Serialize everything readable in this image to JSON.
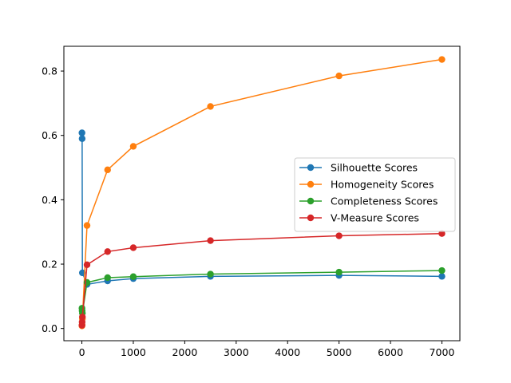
{
  "chart_data": {
    "type": "line",
    "title": "",
    "xlabel": "",
    "ylabel": "",
    "xlim": [
      -350,
      7350
    ],
    "ylim": [
      -0.038,
      0.877
    ],
    "xticks": [
      0,
      1000,
      2000,
      3000,
      4000,
      5000,
      6000,
      7000
    ],
    "xtick_labels": [
      "0",
      "1000",
      "2000",
      "3000",
      "4000",
      "5000",
      "6000",
      "7000"
    ],
    "yticks": [
      0.0,
      0.2,
      0.4,
      0.6,
      0.8
    ],
    "ytick_labels": [
      "0.0",
      "0.2",
      "0.4",
      "0.6",
      "0.8"
    ],
    "grid": false,
    "legend_position": "center-right",
    "series": [
      {
        "name": "Silhouette Scores",
        "color": "#1f77b4",
        "x": [
          2,
          5,
          10,
          100,
          500,
          1000,
          2500,
          5000,
          7000
        ],
        "y": [
          0.608,
          0.59,
          0.173,
          0.137,
          0.148,
          0.155,
          0.162,
          0.165,
          0.162
        ]
      },
      {
        "name": "Homogeneity Scores",
        "color": "#ff7f0e",
        "x": [
          2,
          5,
          10,
          100,
          500,
          1000,
          2500,
          5000,
          7000
        ],
        "y": [
          0.008,
          0.012,
          0.03,
          0.32,
          0.493,
          0.566,
          0.69,
          0.785,
          0.836
        ]
      },
      {
        "name": "Completeness Scores",
        "color": "#2ca02c",
        "x": [
          2,
          5,
          10,
          100,
          500,
          1000,
          2500,
          5000,
          7000
        ],
        "y": [
          0.063,
          0.055,
          0.048,
          0.143,
          0.158,
          0.161,
          0.169,
          0.175,
          0.18
        ]
      },
      {
        "name": "V-Measure Scores",
        "color": "#d62728",
        "x": [
          2,
          5,
          10,
          100,
          500,
          1000,
          2500,
          5000,
          7000
        ],
        "y": [
          0.01,
          0.02,
          0.036,
          0.198,
          0.239,
          0.251,
          0.273,
          0.288,
          0.295
        ]
      }
    ]
  }
}
